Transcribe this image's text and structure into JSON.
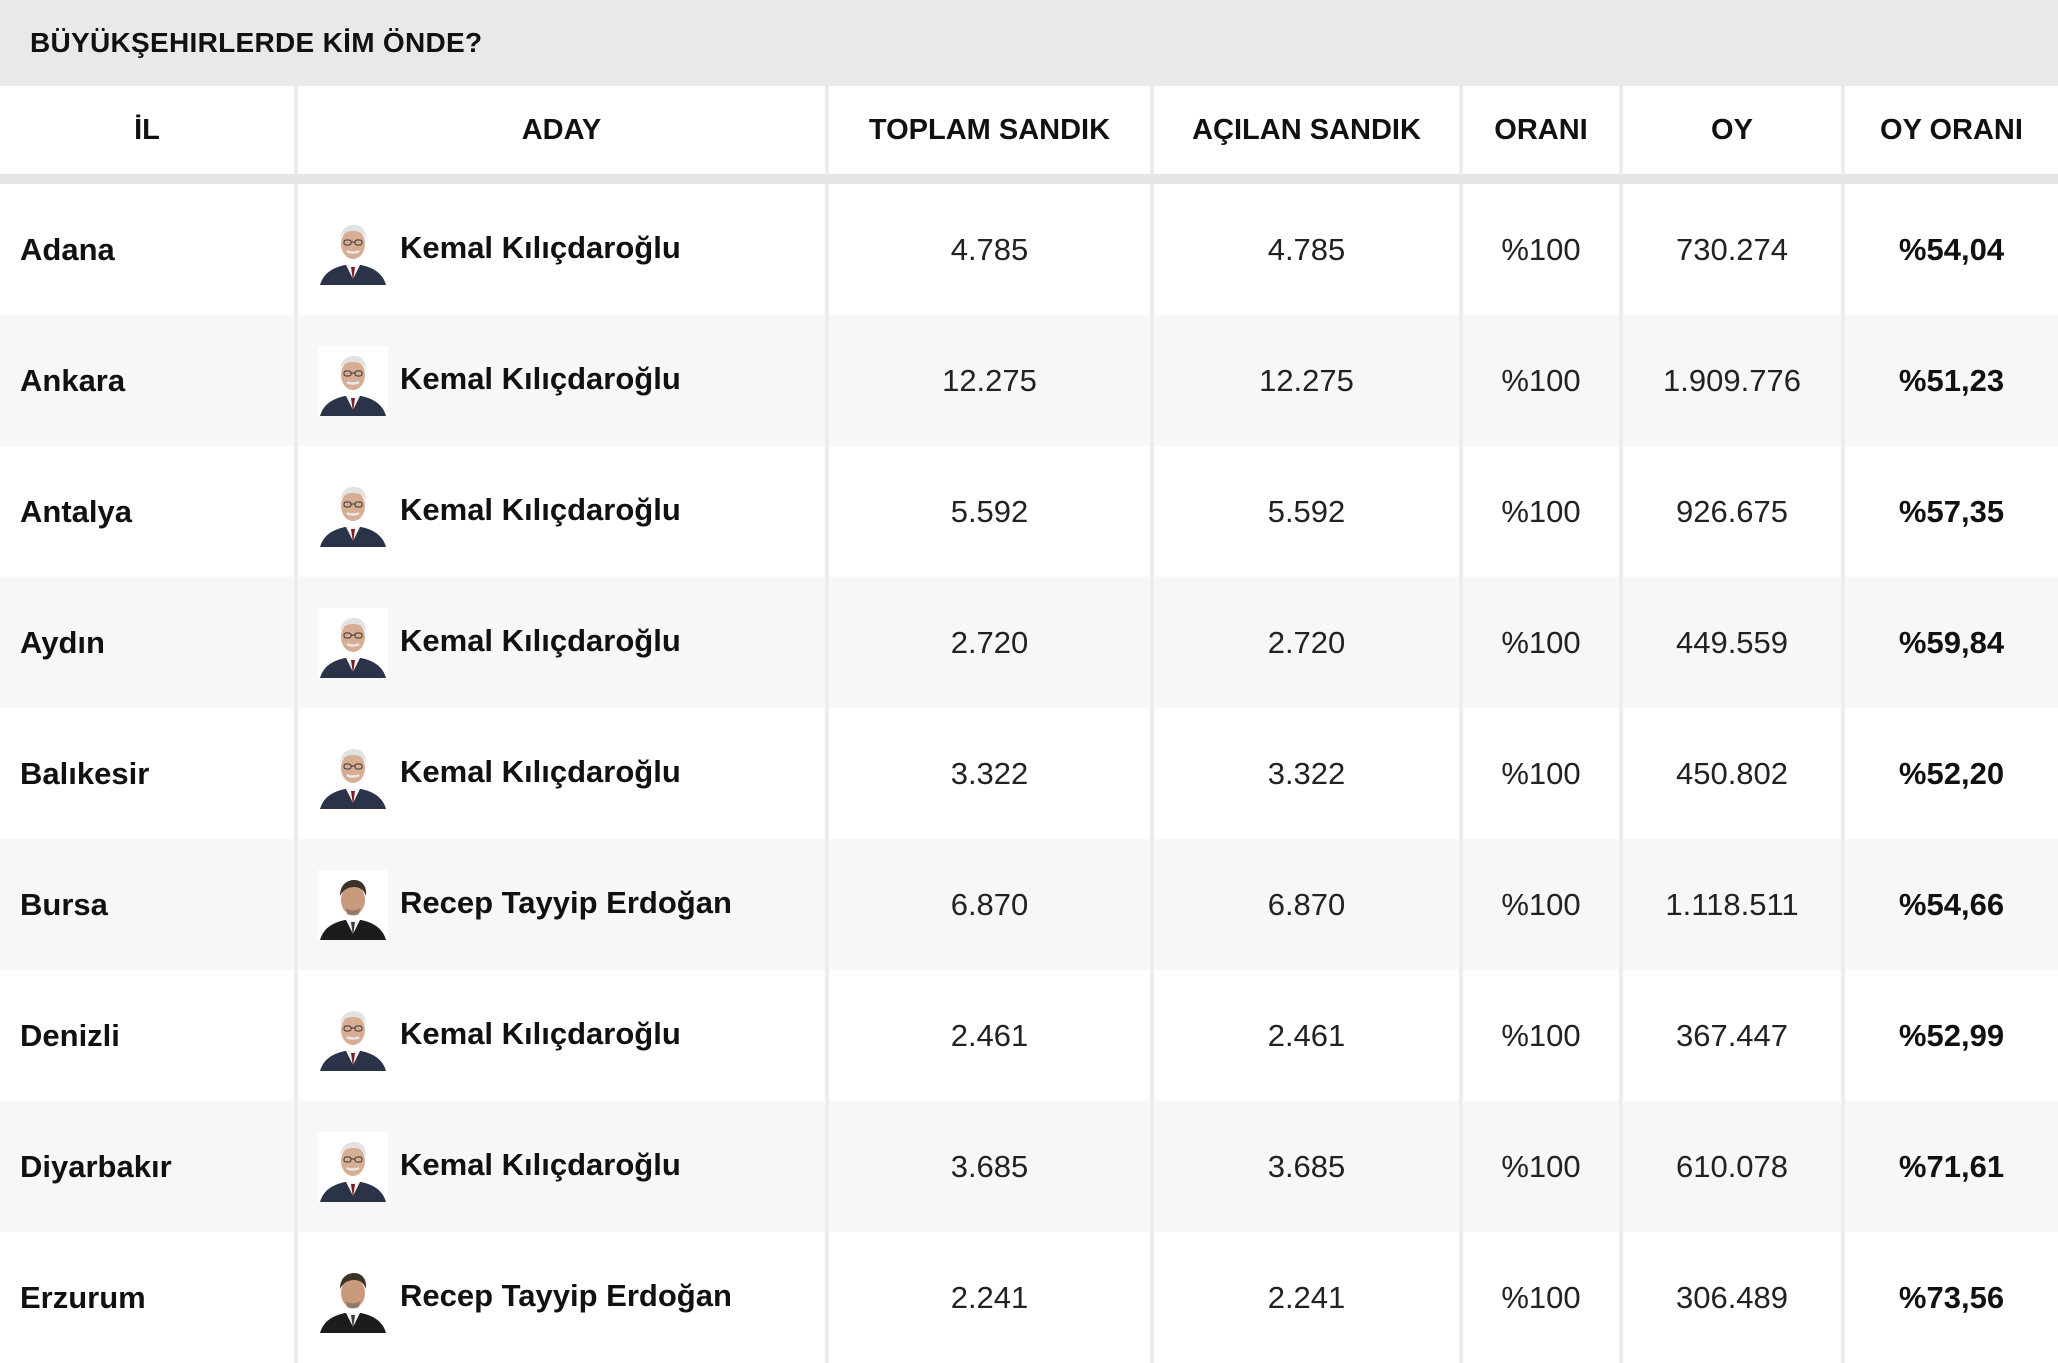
{
  "widget": {
    "title": "BÜYÜKŞEHIRLERDE KİM ÖNDE?"
  },
  "columns": [
    "İL",
    "ADAY",
    "TOPLAM SANDIK",
    "AÇILAN SANDIK",
    "ORANI",
    "OY",
    "OY ORANI"
  ],
  "rows": [
    {
      "il": "Adana",
      "aday": "Kemal Kılıçdaroğlu",
      "photo": "kilicdaroglu",
      "toplam": "4.785",
      "acilan": "4.785",
      "orani": "%100",
      "oy": "730.274",
      "oy_orani": "%54,04"
    },
    {
      "il": "Ankara",
      "aday": "Kemal Kılıçdaroğlu",
      "photo": "kilicdaroglu",
      "toplam": "12.275",
      "acilan": "12.275",
      "orani": "%100",
      "oy": "1.909.776",
      "oy_orani": "%51,23"
    },
    {
      "il": "Antalya",
      "aday": "Kemal Kılıçdaroğlu",
      "photo": "kilicdaroglu",
      "toplam": "5.592",
      "acilan": "5.592",
      "orani": "%100",
      "oy": "926.675",
      "oy_orani": "%57,35"
    },
    {
      "il": "Aydın",
      "aday": "Kemal Kılıçdaroğlu",
      "photo": "kilicdaroglu",
      "toplam": "2.720",
      "acilan": "2.720",
      "orani": "%100",
      "oy": "449.559",
      "oy_orani": "%59,84"
    },
    {
      "il": "Balıkesir",
      "aday": "Kemal Kılıçdaroğlu",
      "photo": "kilicdaroglu",
      "toplam": "3.322",
      "acilan": "3.322",
      "orani": "%100",
      "oy": "450.802",
      "oy_orani": "%52,20"
    },
    {
      "il": "Bursa",
      "aday": "Recep Tayyip Erdoğan",
      "photo": "erdogan",
      "toplam": "6.870",
      "acilan": "6.870",
      "orani": "%100",
      "oy": "1.118.511",
      "oy_orani": "%54,66"
    },
    {
      "il": "Denizli",
      "aday": "Kemal Kılıçdaroğlu",
      "photo": "kilicdaroglu",
      "toplam": "2.461",
      "acilan": "2.461",
      "orani": "%100",
      "oy": "367.447",
      "oy_orani": "%52,99"
    },
    {
      "il": "Diyarbakır",
      "aday": "Kemal Kılıçdaroğlu",
      "photo": "kilicdaroglu",
      "toplam": "3.685",
      "acilan": "3.685",
      "orani": "%100",
      "oy": "610.078",
      "oy_orani": "%71,61"
    },
    {
      "il": "Erzurum",
      "aday": "Recep Tayyip Erdoğan",
      "photo": "erdogan",
      "toplam": "2.241",
      "acilan": "2.241",
      "orani": "%100",
      "oy": "306.489",
      "oy_orani": "%73,56"
    }
  ]
}
